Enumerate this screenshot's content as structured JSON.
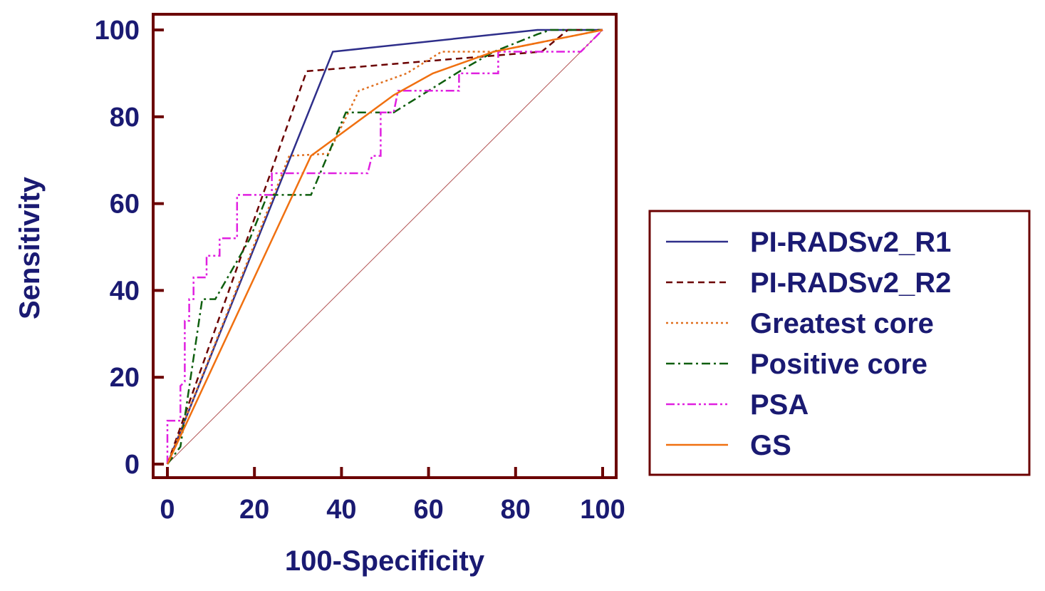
{
  "chart_data": {
    "type": "line",
    "title": "",
    "xlabel": "100-Specificity",
    "ylabel": "Sensitivity",
    "xlim": [
      0,
      100
    ],
    "ylim": [
      0,
      100
    ],
    "xticks": [
      0,
      20,
      40,
      60,
      80,
      100
    ],
    "yticks": [
      0,
      20,
      40,
      60,
      80,
      100
    ],
    "grid": false,
    "legend_position": "right",
    "colors": {
      "frame": "#6b0000",
      "text": "#1a1a72",
      "diagonal": "#b05050"
    },
    "reference_line": {
      "x": [
        0,
        100
      ],
      "y": [
        0,
        100
      ]
    },
    "series": [
      {
        "name": "PI-RADSv2_R1",
        "color": "#2e2e8a",
        "dash": "",
        "x": [
          0,
          38,
          85,
          100
        ],
        "y": [
          0,
          95,
          100,
          100
        ]
      },
      {
        "name": "PI-RADSv2_R2",
        "color": "#6b0000",
        "dash": "9,6",
        "x": [
          0,
          32,
          62,
          86,
          92,
          100
        ],
        "y": [
          0,
          90.5,
          93,
          95,
          100,
          100
        ]
      },
      {
        "name": "Greatest core",
        "color": "#e07020",
        "dash": "3,4",
        "x": [
          0,
          28,
          37,
          44,
          55,
          63,
          75,
          100
        ],
        "y": [
          0,
          71,
          71.5,
          86,
          90,
          95,
          95,
          100
        ]
      },
      {
        "name": "Positive core",
        "color": "#0f5f0f",
        "dash": "12,5,3,5",
        "x": [
          0,
          3,
          8,
          11,
          19,
          23,
          33,
          41,
          52,
          60,
          68,
          75,
          85,
          88,
          100
        ],
        "y": [
          0,
          4,
          38,
          38,
          52,
          62,
          62,
          81,
          81,
          86,
          91,
          95,
          99,
          100,
          100
        ]
      },
      {
        "name": "PSA",
        "color": "#e020e0",
        "dash": "12,4,3,4,3,4",
        "x": [
          0,
          0,
          3,
          3,
          4,
          4,
          5,
          5,
          6,
          6,
          7,
          7,
          9,
          9,
          12,
          12,
          16,
          16,
          24,
          24,
          46,
          47,
          48,
          49,
          49,
          52,
          53,
          67,
          67,
          71,
          76,
          76,
          95,
          100
        ],
        "y": [
          0,
          10,
          10,
          18,
          19,
          33,
          33,
          38,
          38,
          43,
          43,
          43,
          43,
          48,
          48,
          52,
          52,
          62,
          62,
          67,
          67,
          71,
          71,
          71,
          81,
          81,
          86,
          86,
          90,
          90,
          90,
          95,
          95,
          100
        ]
      },
      {
        "name": "GS",
        "color": "#f07010",
        "dash": "",
        "x": [
          0,
          33,
          52,
          61,
          75,
          100
        ],
        "y": [
          0,
          71,
          85,
          90,
          95,
          100
        ]
      }
    ]
  }
}
